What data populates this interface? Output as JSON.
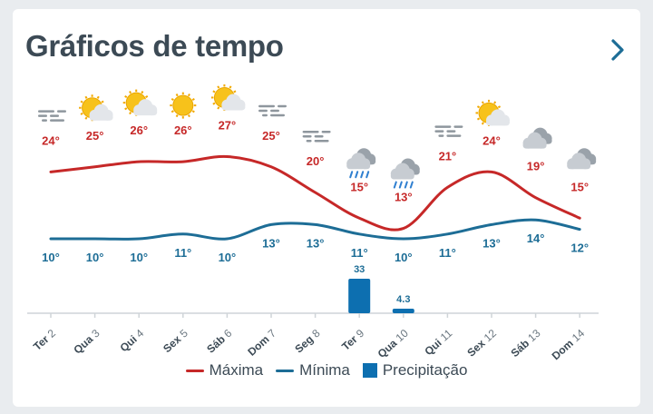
{
  "header": {
    "title": "Gráficos de tempo"
  },
  "colors": {
    "max": "#c62828",
    "min": "#1d6d96",
    "precip": "#0d6fb0"
  },
  "chart_data": {
    "type": "line",
    "categories": [
      {
        "day": "Ter",
        "date": "2"
      },
      {
        "day": "Qua",
        "date": "3"
      },
      {
        "day": "Qui",
        "date": "4"
      },
      {
        "day": "Sex",
        "date": "5"
      },
      {
        "day": "Sáb",
        "date": "6"
      },
      {
        "day": "Dom",
        "date": "7"
      },
      {
        "day": "Seg",
        "date": "8"
      },
      {
        "day": "Ter",
        "date": "9"
      },
      {
        "day": "Qua",
        "date": "10"
      },
      {
        "day": "Qui",
        "date": "11"
      },
      {
        "day": "Sex",
        "date": "12"
      },
      {
        "day": "Sáb",
        "date": "13"
      },
      {
        "day": "Dom",
        "date": "14"
      }
    ],
    "series": [
      {
        "name": "Máxima",
        "values": [
          24,
          25,
          26,
          26,
          27,
          25,
          20,
          15,
          13,
          21,
          24,
          19,
          15
        ]
      },
      {
        "name": "Mínima",
        "values": [
          10,
          10,
          10,
          11,
          10,
          13,
          13,
          11,
          10,
          11,
          13,
          14,
          12
        ]
      },
      {
        "name": "Precipitação",
        "values": [
          0,
          0,
          0,
          0,
          0,
          0,
          0,
          33,
          4.3,
          0,
          0,
          0,
          0
        ]
      }
    ],
    "max_labels": [
      "24°",
      "25°",
      "26°",
      "26°",
      "27°",
      "25°",
      "20°",
      "15°",
      "13°",
      "21°",
      "24°",
      "19°",
      "15°"
    ],
    "min_labels": [
      "10°",
      "10°",
      "10°",
      "11°",
      "10°",
      "13°",
      "13°",
      "11°",
      "10°",
      "11°",
      "13°",
      "14°",
      "12°"
    ],
    "precip_labels": [
      "",
      "",
      "",
      "",
      "",
      "",
      "",
      "33",
      "4.3",
      "",
      "",
      "",
      ""
    ],
    "icons": [
      "fog-icon",
      "sun-cloud-icon",
      "sun-cloud-icon",
      "sun-icon",
      "sun-cloud-icon",
      "fog-icon",
      "fog-icon",
      "rain-icon",
      "rain-icon",
      "fog-icon",
      "sun-cloud-icon",
      "cloud-icon",
      "cloud-icon"
    ],
    "legend": [
      "Máxima",
      "Mínima",
      "Precipitação"
    ],
    "legend_position": "bottom",
    "grid": false
  }
}
